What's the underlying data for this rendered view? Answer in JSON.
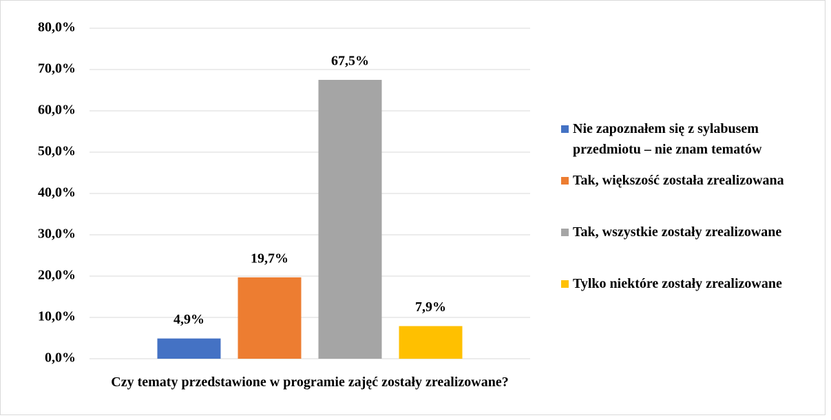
{
  "chart_data": {
    "type": "bar",
    "categories": [
      "Czy  tematy przedstawione w programie zajęć zostały zrealizowane?"
    ],
    "series": [
      {
        "name": "Nie zapoznałem się z sylabusem przedmiotu – nie znam tematów",
        "color": "#4472c4",
        "values": [
          4.9
        ],
        "value_labels": [
          "4,9%"
        ]
      },
      {
        "name": "Tak, większość została zrealizowana",
        "color": "#ed7d31",
        "values": [
          19.7
        ],
        "value_labels": [
          "19,7%"
        ]
      },
      {
        "name": "Tak, wszystkie zostały zrealizowane",
        "color": "#a5a5a5",
        "values": [
          67.5
        ],
        "value_labels": [
          "67,5%"
        ]
      },
      {
        "name": "Tylko niektóre zostały zrealizowane",
        "color": "#ffc000",
        "values": [
          7.9
        ],
        "value_labels": [
          "7,9%"
        ]
      }
    ],
    "ylim": [
      0,
      80
    ],
    "yticks": [
      {
        "value": 0,
        "label": "0,0%"
      },
      {
        "value": 10,
        "label": "10,0%"
      },
      {
        "value": 20,
        "label": "20,0%"
      },
      {
        "value": 30,
        "label": "30,0%"
      },
      {
        "value": 40,
        "label": "40,0%"
      },
      {
        "value": 50,
        "label": "50,0%"
      },
      {
        "value": 60,
        "label": "60,0%"
      },
      {
        "value": 70,
        "label": "70,0%"
      },
      {
        "value": 80,
        "label": "80,0%"
      }
    ],
    "grid": true,
    "legend": "right"
  }
}
